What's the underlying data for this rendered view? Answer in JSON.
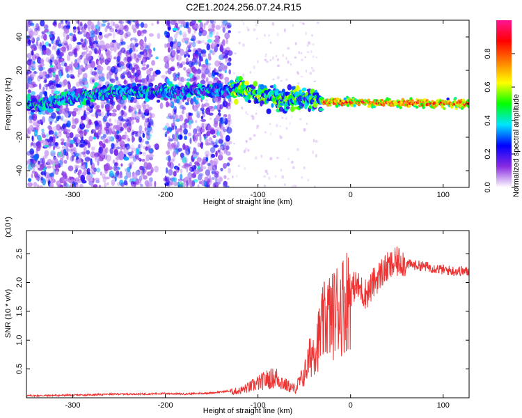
{
  "figure": {
    "title": "C2E1.2024.256.07.24.R15"
  },
  "chart_data": [
    {
      "type": "heatmap",
      "title": "C2E1.2024.256.07.24.R15",
      "xlabel": "Height of straight line (km)",
      "ylabel": "Frequency (Hz)",
      "xlim": [
        -350,
        128
      ],
      "ylim": [
        -50,
        50
      ],
      "xticks": [
        -300,
        -200,
        -100,
        0,
        100
      ],
      "yticks": [
        -40,
        -20,
        0,
        20,
        40
      ],
      "colorbar": {
        "label": "Normalized spectral amplitude",
        "range": [
          0,
          1
        ],
        "ticks": [
          "0.0",
          "0.2",
          "0.4",
          "0.6",
          "0.8"
        ],
        "colormap": [
          "#ffffff",
          "#8a2be2",
          "#0000ff",
          "#00e5ff",
          "#00ff00",
          "#ffff00",
          "#ff7f00",
          "#ff0000",
          "#ff1493"
        ]
      },
      "features": {
        "band_center_hz": [
          [
            -340,
            -2
          ],
          [
            -300,
            4
          ],
          [
            -260,
            7
          ],
          [
            -200,
            7
          ],
          [
            -150,
            8
          ],
          [
            -120,
            9
          ],
          [
            -100,
            5
          ],
          [
            -80,
            3
          ],
          [
            -60,
            2
          ],
          [
            -40,
            3
          ],
          [
            -30,
            1
          ],
          [
            0,
            1
          ],
          [
            120,
            0
          ]
        ],
        "broad_noise_region_km": [
          -350,
          -130
        ],
        "gap_km": [
          -215,
          -200
        ]
      }
    },
    {
      "type": "line",
      "xlabel": "Height of straight line (km)",
      "ylabel": "SNR (10 * v/v)",
      "y_multiplier_label": "(x10⁴)",
      "xlim": [
        -350,
        128
      ],
      "ylim": [
        0,
        2.9
      ],
      "xticks": [
        -300,
        -200,
        -100,
        0,
        100
      ],
      "yticks": [
        0.5,
        1.0,
        1.5,
        2.0,
        2.5
      ],
      "color": "#ee3333",
      "series": [
        {
          "x": [
            -350,
            -300,
            -250,
            -220,
            -200,
            -180,
            -150,
            -120,
            -110,
            -100,
            -90,
            -80,
            -70,
            -60,
            -50,
            -45,
            -40,
            -35,
            -30,
            -25,
            -20,
            -15,
            -10,
            -5,
            0,
            5,
            10,
            15,
            20,
            25,
            30,
            35,
            40,
            45,
            50,
            55,
            60,
            70,
            80,
            90,
            100,
            110,
            120,
            128
          ],
          "y": [
            0.02,
            0.03,
            0.05,
            0.05,
            0.06,
            0.05,
            0.07,
            0.12,
            0.18,
            0.25,
            0.32,
            0.35,
            0.22,
            0.15,
            0.4,
            0.65,
            0.85,
            1.0,
            1.25,
            1.45,
            1.4,
            1.55,
            1.6,
            1.7,
            1.85,
            1.95,
            1.9,
            1.8,
            1.85,
            2.0,
            2.1,
            2.2,
            2.25,
            2.3,
            2.35,
            2.38,
            2.32,
            2.3,
            2.28,
            2.25,
            2.22,
            2.2,
            2.2,
            2.18
          ]
        }
      ]
    }
  ]
}
